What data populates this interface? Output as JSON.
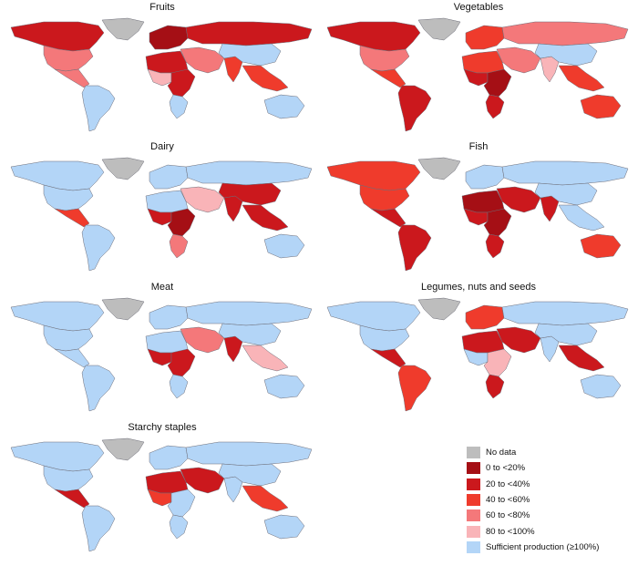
{
  "colors": {
    "no_data": "#bdbdbd",
    "c0_20": "#a50f15",
    "c20_40": "#cb181d",
    "c40_60": "#ef3b2c",
    "c60_80": "#f4787a",
    "c80_100": "#f9b4b8",
    "sufficient": "#b3d5f7",
    "border": "#6d6d78",
    "ocean": "#ffffff"
  },
  "panels": [
    {
      "id": "fruits",
      "title": "Fruits"
    },
    {
      "id": "vegetables",
      "title": "Vegetables"
    },
    {
      "id": "dairy",
      "title": "Dairy"
    },
    {
      "id": "fish",
      "title": "Fish"
    },
    {
      "id": "meat",
      "title": "Meat"
    },
    {
      "id": "legumes",
      "title": "Legumes, nuts and seeds"
    },
    {
      "id": "starchy",
      "title": "Starchy staples"
    }
  ],
  "map_shading": {
    "fruits": {
      "greenland": "no_data",
      "north_america": "c20_40",
      "usa": "c60_80",
      "central_america": "c60_80",
      "south_america": "sufficient",
      "europe": "c0_20",
      "russia": "c20_40",
      "middle_east": "c60_80",
      "africa_north": "c20_40",
      "africa_west": "c80_100",
      "africa_central": "c20_40",
      "africa_south": "sufficient",
      "india": "c40_60",
      "china": "sufficient",
      "se_asia": "c40_60",
      "australia": "sufficient"
    },
    "vegetables": {
      "greenland": "no_data",
      "north_america": "c20_40",
      "usa": "c60_80",
      "central_america": "c40_60",
      "south_america": "c20_40",
      "europe": "c40_60",
      "russia": "c60_80",
      "middle_east": "c60_80",
      "africa_north": "c40_60",
      "africa_west": "c20_40",
      "africa_central": "c0_20",
      "africa_south": "c20_40",
      "india": "c80_100",
      "china": "sufficient",
      "se_asia": "c40_60",
      "australia": "c40_60"
    },
    "dairy": {
      "greenland": "no_data",
      "north_america": "sufficient",
      "usa": "sufficient",
      "central_america": "c40_60",
      "south_america": "sufficient",
      "europe": "sufficient",
      "russia": "sufficient",
      "middle_east": "c80_100",
      "africa_north": "sufficient",
      "africa_west": "c20_40",
      "africa_central": "c0_20",
      "africa_south": "c60_80",
      "india": "c20_40",
      "china": "c20_40",
      "se_asia": "c20_40",
      "australia": "sufficient"
    },
    "fish": {
      "greenland": "no_data",
      "north_america": "c40_60",
      "usa": "c40_60",
      "central_america": "c20_40",
      "south_america": "c20_40",
      "europe": "sufficient",
      "russia": "sufficient",
      "middle_east": "c20_40",
      "africa_north": "c0_20",
      "africa_west": "c20_40",
      "africa_central": "c0_20",
      "africa_south": "c20_40",
      "india": "c20_40",
      "china": "sufficient",
      "se_asia": "sufficient",
      "australia": "c40_60"
    },
    "meat": {
      "greenland": "no_data",
      "north_america": "sufficient",
      "usa": "sufficient",
      "central_america": "sufficient",
      "south_america": "sufficient",
      "europe": "sufficient",
      "russia": "sufficient",
      "middle_east": "c60_80",
      "africa_north": "sufficient",
      "africa_west": "c20_40",
      "africa_central": "c20_40",
      "africa_south": "sufficient",
      "india": "c20_40",
      "china": "sufficient",
      "se_asia": "c80_100",
      "australia": "sufficient"
    },
    "legumes": {
      "greenland": "no_data",
      "north_america": "sufficient",
      "usa": "sufficient",
      "central_america": "c20_40",
      "south_america": "c40_60",
      "europe": "c40_60",
      "russia": "sufficient",
      "middle_east": "c20_40",
      "africa_north": "c20_40",
      "africa_west": "sufficient",
      "africa_central": "c80_100",
      "africa_south": "c20_40",
      "india": "sufficient",
      "china": "sufficient",
      "se_asia": "c20_40",
      "australia": "sufficient"
    },
    "starchy": {
      "greenland": "no_data",
      "north_america": "sufficient",
      "usa": "sufficient",
      "central_america": "c20_40",
      "south_america": "sufficient",
      "europe": "sufficient",
      "russia": "sufficient",
      "middle_east": "c20_40",
      "africa_north": "c20_40",
      "africa_west": "c40_60",
      "africa_central": "sufficient",
      "africa_south": "sufficient",
      "india": "sufficient",
      "china": "sufficient",
      "se_asia": "c40_60",
      "australia": "sufficient"
    }
  },
  "legend": [
    {
      "key": "no_data",
      "label": "No data"
    },
    {
      "key": "c0_20",
      "label": "0 to <20%"
    },
    {
      "key": "c20_40",
      "label": "20 to <40%"
    },
    {
      "key": "c40_60",
      "label": "40 to <60%"
    },
    {
      "key": "c60_80",
      "label": "60 to <80%"
    },
    {
      "key": "c80_100",
      "label": "80 to <100%"
    },
    {
      "key": "sufficient",
      "label": "Sufficient production (≥100%)"
    }
  ]
}
